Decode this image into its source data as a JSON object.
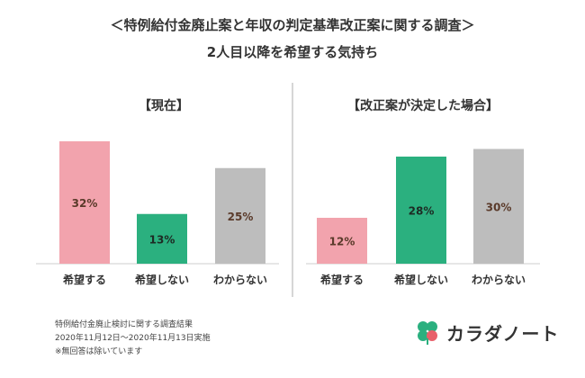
{
  "header": {
    "title": "＜特例給付金廃止案と年収の判定基準改正案に関する調査＞",
    "subtitle": "2人目以降を希望する気持ち"
  },
  "chart_data": [
    {
      "type": "bar",
      "title": "【現在】",
      "categories": [
        "希望する",
        "希望しない",
        "わからない"
      ],
      "values": [
        32,
        13,
        25
      ],
      "value_labels": [
        "32%",
        "13%",
        "25%"
      ],
      "colors": [
        "#f2a3ad",
        "#2bb07f",
        "#bdbdbd"
      ],
      "ylim": [
        0,
        32
      ],
      "grid": false,
      "legend": "none"
    },
    {
      "type": "bar",
      "title": "【改正案が決定した場合】",
      "categories": [
        "希望する",
        "希望しない",
        "わからない"
      ],
      "values": [
        12,
        28,
        30
      ],
      "value_labels": [
        "12%",
        "28%",
        "30%"
      ],
      "colors": [
        "#f2a3ad",
        "#2bb07f",
        "#bdbdbd"
      ],
      "ylim": [
        0,
        32
      ],
      "grid": false,
      "legend": "none"
    }
  ],
  "footer": {
    "notes": [
      "特例給付金廃止検討に関する調査結果",
      "2020年11月12日～2020年11月13日実施",
      "※無回答は除いています"
    ],
    "brand": "カラダノート",
    "logo_icon": "clover-icon",
    "logo_colors": [
      "#2bb07f",
      "#e8606a"
    ]
  }
}
